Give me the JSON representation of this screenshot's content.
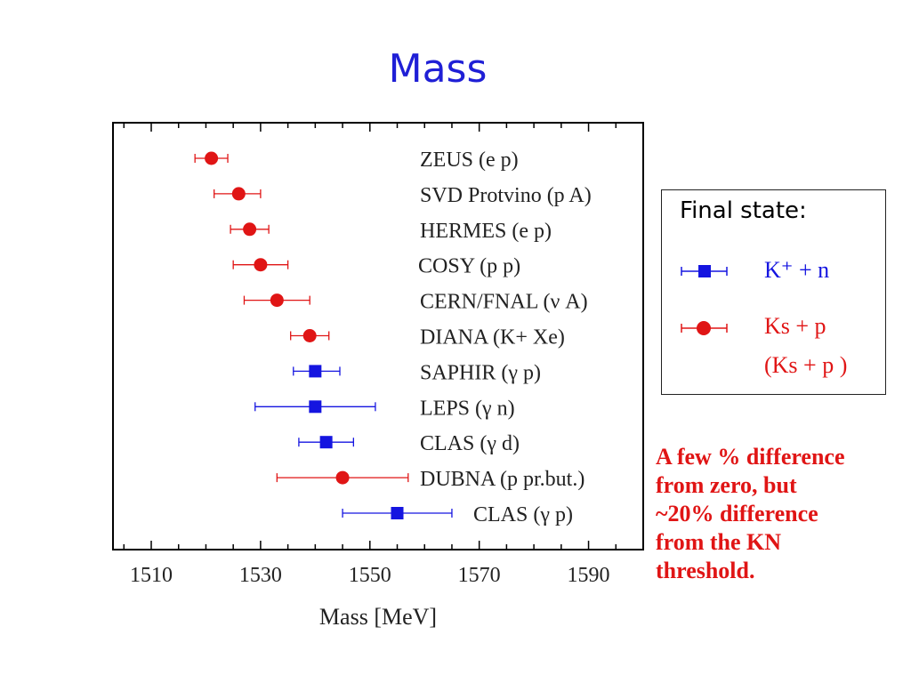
{
  "title": "Mass",
  "chart_data": {
    "type": "scatter",
    "xlabel": "Mass [MeV]",
    "xlim": [
      1503,
      1600
    ],
    "xticks": [
      "1510",
      "1530",
      "1550",
      "1570",
      "1590"
    ],
    "grid": false,
    "series_colors": {
      "KN": "#1515e0",
      "KsP": "#e01515"
    },
    "points": [
      {
        "label": "ZEUS (e p)",
        "series": "KsP",
        "x": 1521,
        "err_low": 3,
        "err_high": 3
      },
      {
        "label": "SVD Protvino (p A)",
        "series": "KsP",
        "x": 1526,
        "err_low": 4.5,
        "err_high": 4
      },
      {
        "label": "HERMES (e p)",
        "series": "KsP",
        "x": 1528,
        "err_low": 3.5,
        "err_high": 3.5
      },
      {
        "label": "COSY (p p)",
        "series": "KsP",
        "x": 1530,
        "err_low": 5,
        "err_high": 5
      },
      {
        "label": "CERN/FNAL (ν A)",
        "series": "KsP",
        "x": 1533,
        "err_low": 6,
        "err_high": 6
      },
      {
        "label": "DIANA (K+ Xe)",
        "series": "KsP",
        "x": 1539,
        "err_low": 3.5,
        "err_high": 3.5
      },
      {
        "label": "SAPHIR (γ p)",
        "series": "KN",
        "x": 1540,
        "err_low": 4,
        "err_high": 4.5
      },
      {
        "label": "LEPS (γ n)",
        "series": "KN",
        "x": 1540,
        "err_low": 11,
        "err_high": 11
      },
      {
        "label": "CLAS (γ d)",
        "series": "KN",
        "x": 1542,
        "err_low": 5,
        "err_high": 5
      },
      {
        "label": "DUBNA (p pr.but.)",
        "series": "KsP",
        "x": 1545,
        "err_low": 12,
        "err_high": 12
      },
      {
        "label": "CLAS (γ p)",
        "series": "KN",
        "x": 1555,
        "err_low": 10,
        "err_high": 10
      }
    ]
  },
  "legend": {
    "title": "Final state:",
    "entries": [
      {
        "series": "KN",
        "label": "K⁺ + n"
      },
      {
        "series": "KsP",
        "label": "Ks + p",
        "label2": "(Ks + p )"
      }
    ]
  },
  "note": {
    "lines": [
      "A few % difference",
      "from zero, but",
      "~20% difference",
      "from the KN",
      "threshold."
    ]
  }
}
